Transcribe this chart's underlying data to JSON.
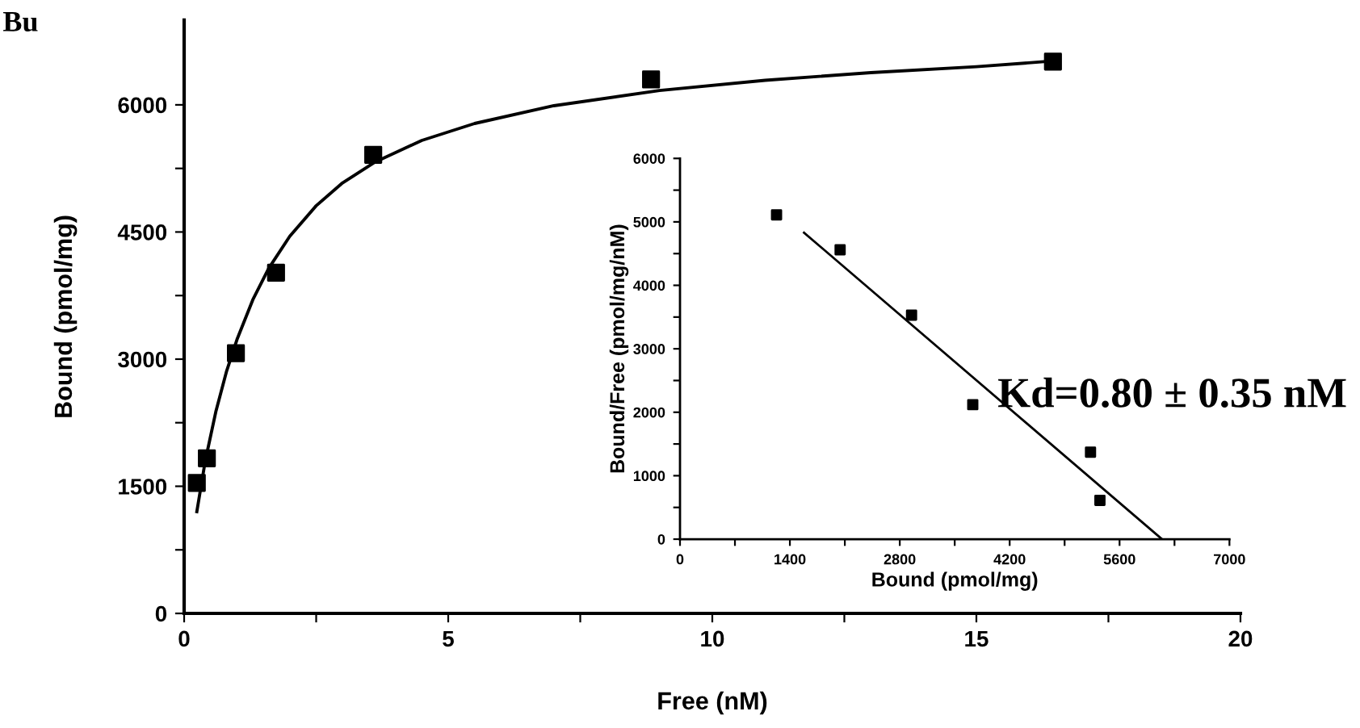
{
  "chart_data": [
    {
      "type": "scatter",
      "xlabel": "Free (nM)",
      "ylabel": "Bound (pmol/mg)",
      "annotations": [
        "Bu",
        "Kd=0.80 ± 0.35 nM"
      ],
      "xlim": [
        0,
        20
      ],
      "ylim": [
        0,
        7000
      ],
      "xticks": [
        0,
        {
          "value": 2.5,
          "label": null
        },
        5,
        {
          "value": 7.5,
          "label": null
        },
        10,
        {
          "value": 12.5,
          "label": null
        },
        15,
        {
          "value": 17.5,
          "label": null
        },
        20
      ],
      "yticks": [
        0,
        {
          "value": 750,
          "label": null
        },
        1500,
        {
          "value": 2250,
          "label": null
        },
        3000,
        {
          "value": 3750,
          "label": null
        },
        4500,
        {
          "value": 5250,
          "label": null
        },
        6000
      ],
      "grid": false,
      "marker": "square",
      "series": [
        {
          "color": "#000000",
          "x": [
            0.24,
            0.43,
            0.98,
            1.74,
            3.58,
            8.84,
            16.45
          ],
          "values": [
            1540,
            1830,
            3070,
            4020,
            5410,
            6300,
            6510
          ]
        },
        {
          "type": "line",
          "color": "#000000",
          "marker": "none",
          "line_style": "solid",
          "x": [
            0.24,
            0.4,
            0.6,
            0.8,
            1.0,
            1.3,
            1.6,
            2.0,
            2.5,
            3.0,
            3.6,
            4.5,
            5.5,
            7,
            9,
            11,
            13,
            15,
            16.5
          ],
          "values": [
            1200,
            1800,
            2380,
            2850,
            3230,
            3700,
            4070,
            4450,
            4810,
            5080,
            5320,
            5580,
            5780,
            5990,
            6170,
            6290,
            6380,
            6450,
            6520
          ]
        }
      ]
    },
    {
      "type": "scatter",
      "xlabel": "Bound (pmol/mg)",
      "ylabel": "Bound/Free (pmol/mg/nM)",
      "xlim": [
        0,
        7000
      ],
      "ylim": [
        0,
        6000
      ],
      "xticks": [
        0,
        {
          "value": 700,
          "label": null
        },
        1400,
        {
          "value": 2100,
          "label": null
        },
        2800,
        {
          "value": 3500,
          "label": null
        },
        4200,
        {
          "value": 4900,
          "label": null
        },
        5600,
        {
          "value": 6300,
          "label": null
        },
        7000
      ],
      "yticks": [
        0,
        {
          "value": 500,
          "label": null
        },
        1000,
        {
          "value": 1500,
          "label": null
        },
        2000,
        {
          "value": 2500,
          "label": null
        },
        3000,
        {
          "value": 3500,
          "label": null
        },
        4000,
        {
          "value": 4500,
          "label": null
        },
        5000,
        {
          "value": 5500,
          "label": null
        },
        6000
      ],
      "grid": false,
      "marker": "square",
      "series": [
        {
          "color": "#000000",
          "x": [
            1230,
            2040,
            2950,
            3730,
            5230,
            5350
          ],
          "values": [
            5110,
            4560,
            3530,
            2120,
            1370,
            610
          ]
        },
        {
          "type": "line",
          "color": "#000000",
          "marker": "none",
          "line_style": "solid",
          "x": [
            1580,
            6140
          ],
          "values": [
            4830,
            0
          ]
        }
      ]
    }
  ]
}
